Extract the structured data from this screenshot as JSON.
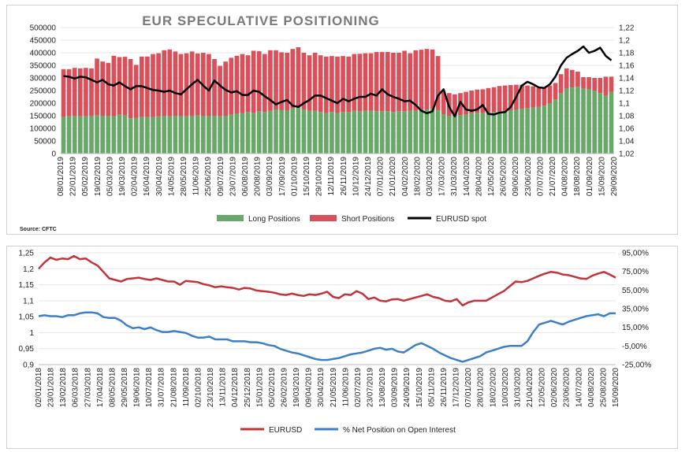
{
  "top": {
    "title": "EUR SPECULATIVE POSITIONING",
    "source": "Source: CFTC",
    "legend": {
      "long": "Long Positions",
      "short": "Short Positions",
      "spot": "EURUSD spot"
    },
    "colors": {
      "long": "#6aa86a",
      "short": "#d9505a",
      "spot": "#000000"
    }
  },
  "bottom": {
    "legend": {
      "eurusd": "EURUSD",
      "net": "% Net Position on Open Interest"
    },
    "colors": {
      "eurusd": "#c0343b",
      "net": "#3d7fc4"
    }
  },
  "chart_data": [
    {
      "type": "bar",
      "stacked": true,
      "title": "EUR SPECULATIVE POSITIONING",
      "x_tick_labels": [
        "08/01/2019",
        "22/01/2019",
        "05/02/2019",
        "19/02/2019",
        "05/03/2019",
        "19/03/2019",
        "02/04/2019",
        "16/04/2019",
        "30/04/2019",
        "14/05/2019",
        "28/05/2019",
        "11/06/2019",
        "25/06/2019",
        "09/07/2019",
        "23/07/2019",
        "06/08/2019",
        "20/08/2019",
        "03/09/2019",
        "17/09/2019",
        "01/10/2019",
        "15/10/2019",
        "29/10/2019",
        "12/11/2019",
        "26/11/2019",
        "10/12/2019",
        "24/12/2019",
        "07/01/2020",
        "21/01/2020",
        "04/02/2020",
        "18/02/2020",
        "03/03/2020",
        "17/03/2020",
        "31/03/2020",
        "14/04/2020",
        "28/04/2020",
        "12/05/2020",
        "26/05/2020",
        "09/06/2020",
        "23/06/2020",
        "07/07/2020",
        "21/07/2020",
        "04/08/2020",
        "18/08/2020",
        "01/09/2020",
        "15/09/2020",
        "29/09/2020"
      ],
      "ylim": [
        0,
        500000
      ],
      "y_ticks": [
        0,
        50000,
        100000,
        150000,
        200000,
        250000,
        300000,
        350000,
        400000,
        450000,
        500000
      ],
      "y2lim": [
        1.02,
        1.22
      ],
      "y2_tick_labels": [
        "1,02",
        "1,04",
        "1,06",
        "1,08",
        "1,1",
        "1,12",
        "1,14",
        "1,16",
        "1,18",
        "1,2",
        "1,22"
      ],
      "series": [
        {
          "name": "Long Positions",
          "axis": "left",
          "values": [
            145000,
            150000,
            150000,
            148000,
            148000,
            150000,
            152000,
            150000,
            150000,
            148000,
            155000,
            152000,
            140000,
            142000,
            145000,
            145000,
            145000,
            148000,
            150000,
            148000,
            150000,
            150000,
            148000,
            150000,
            152000,
            150000,
            150000,
            150000,
            148000,
            150000,
            155000,
            158000,
            160000,
            165000,
            160000,
            168000,
            165000,
            170000,
            175000,
            172000,
            170000,
            180000,
            185000,
            175000,
            170000,
            170000,
            165000,
            160000,
            165000,
            160000,
            165000,
            165000,
            170000,
            168000,
            170000,
            170000,
            168000,
            168000,
            168000,
            165000,
            168000,
            168000,
            170000,
            170000,
            172000,
            175000,
            178000,
            172000,
            155000,
            150000,
            150000,
            152000,
            155000,
            160000,
            162000,
            160000,
            165000,
            165000,
            168000,
            170000,
            172000,
            175000,
            178000,
            180000,
            182000,
            185000,
            190000,
            200000,
            215000,
            240000,
            258000,
            262000,
            265000,
            258000,
            255000,
            250000,
            240000,
            230000,
            245000
          ]
        },
        {
          "name": "Short Positions",
          "axis": "left",
          "values": [
            190000,
            185000,
            190000,
            190000,
            192000,
            188000,
            225000,
            215000,
            210000,
            240000,
            228000,
            232000,
            235000,
            210000,
            240000,
            240000,
            250000,
            250000,
            260000,
            265000,
            255000,
            245000,
            250000,
            255000,
            245000,
            250000,
            245000,
            225000,
            200000,
            215000,
            225000,
            230000,
            235000,
            225000,
            248000,
            238000,
            230000,
            240000,
            235000,
            230000,
            230000,
            235000,
            237000,
            225000,
            220000,
            230000,
            225000,
            225000,
            222000,
            225000,
            222000,
            220000,
            225000,
            228000,
            228000,
            228000,
            235000,
            235000,
            235000,
            235000,
            232000,
            240000,
            228000,
            240000,
            240000,
            240000,
            235000,
            215000,
            90000,
            90000,
            85000,
            88000,
            90000,
            90000,
            92000,
            95000,
            95000,
            98000,
            100000,
            100000,
            100000,
            98000,
            95000,
            90000,
            85000,
            75000,
            72000,
            70000,
            65000,
            75000,
            80000,
            70000,
            60000,
            45000,
            48000,
            50000,
            60000,
            75000,
            60000
          ]
        },
        {
          "name": "EURUSD spot",
          "axis": "right",
          "values": [
            1.143,
            1.142,
            1.139,
            1.142,
            1.141,
            1.137,
            1.133,
            1.137,
            1.13,
            1.128,
            1.133,
            1.127,
            1.122,
            1.127,
            1.127,
            1.124,
            1.121,
            1.12,
            1.118,
            1.12,
            1.116,
            1.114,
            1.122,
            1.13,
            1.137,
            1.128,
            1.12,
            1.136,
            1.128,
            1.121,
            1.117,
            1.119,
            1.113,
            1.113,
            1.12,
            1.118,
            1.111,
            1.105,
            1.098,
            1.102,
            1.105,
            1.096,
            1.094,
            1.1,
            1.105,
            1.112,
            1.112,
            1.108,
            1.104,
            1.1,
            1.107,
            1.103,
            1.107,
            1.11,
            1.11,
            1.115,
            1.112,
            1.122,
            1.114,
            1.11,
            1.107,
            1.103,
            1.104,
            1.097,
            1.088,
            1.084,
            1.087,
            1.112,
            1.122,
            1.094,
            1.079,
            1.102,
            1.09,
            1.088,
            1.09,
            1.097,
            1.083,
            1.082,
            1.085,
            1.086,
            1.094,
            1.11,
            1.128,
            1.134,
            1.13,
            1.125,
            1.124,
            1.13,
            1.142,
            1.16,
            1.172,
            1.178,
            1.183,
            1.19,
            1.18,
            1.183,
            1.188,
            1.175,
            1.168
          ]
        }
      ]
    },
    {
      "type": "line",
      "x_tick_labels": [
        "02/01/2018",
        "23/01/2018",
        "13/02/2018",
        "06/03/2018",
        "27/03/2018",
        "17/04/2018",
        "08/05/2018",
        "29/05/2018",
        "19/06/2018",
        "10/07/2018",
        "31/07/2018",
        "21/08/2018",
        "11/09/2018",
        "02/10/2018",
        "23/10/2018",
        "13/11/2018",
        "04/12/2018",
        "25/12/2018",
        "15/01/2019",
        "05/02/2019",
        "26/02/2019",
        "19/03/2019",
        "09/04/2019",
        "30/04/2019",
        "21/05/2019",
        "11/06/2019",
        "02/07/2019",
        "23/07/2019",
        "13/08/2019",
        "03/09/2019",
        "24/09/2019",
        "15/10/2019",
        "05/11/2019",
        "26/11/2019",
        "17/12/2019",
        "07/01/2020",
        "28/01/2020",
        "18/02/2020",
        "10/03/2020",
        "31/03/2020",
        "21/04/2020",
        "12/05/2020",
        "02/06/2020",
        "23/06/2020",
        "14/07/2020",
        "04/08/2020",
        "25/08/2020",
        "15/09/2020"
      ],
      "ylim": [
        0.9,
        1.25
      ],
      "y_tick_labels": [
        "0,9",
        "0,95",
        "1",
        "1,05",
        "1,1",
        "1,15",
        "1,2",
        "1,25"
      ],
      "y2lim": [
        -25,
        95
      ],
      "y2_tick_labels": [
        "-25,00%",
        "-5,00%",
        "15,00%",
        "35,00%",
        "55,00%",
        "75,00%",
        "95,00%"
      ],
      "series": [
        {
          "name": "EURUSD",
          "axis": "left",
          "values": [
            1.2,
            1.22,
            1.235,
            1.228,
            1.232,
            1.23,
            1.24,
            1.23,
            1.232,
            1.22,
            1.21,
            1.19,
            1.17,
            1.165,
            1.16,
            1.168,
            1.17,
            1.172,
            1.168,
            1.165,
            1.17,
            1.165,
            1.16,
            1.16,
            1.15,
            1.162,
            1.16,
            1.158,
            1.152,
            1.148,
            1.142,
            1.145,
            1.142,
            1.14,
            1.135,
            1.14,
            1.138,
            1.132,
            1.13,
            1.128,
            1.125,
            1.12,
            1.118,
            1.122,
            1.118,
            1.115,
            1.12,
            1.118,
            1.122,
            1.128,
            1.112,
            1.108,
            1.12,
            1.118,
            1.13,
            1.122,
            1.105,
            1.11,
            1.1,
            1.098,
            1.104,
            1.105,
            1.1,
            1.105,
            1.11,
            1.115,
            1.12,
            1.112,
            1.108,
            1.1,
            1.098,
            1.105,
            1.085,
            1.095,
            1.1,
            1.1,
            1.1,
            1.11,
            1.12,
            1.13,
            1.145,
            1.16,
            1.158,
            1.162,
            1.17,
            1.178,
            1.185,
            1.19,
            1.188,
            1.182,
            1.18,
            1.175,
            1.17,
            1.168,
            1.178,
            1.185,
            1.19,
            1.182,
            1.172
          ]
        },
        {
          "name": "% Net Position on Open Interest",
          "axis": "right",
          "values": [
            27,
            28,
            27,
            27,
            26,
            28,
            28,
            30,
            31,
            31,
            30,
            26,
            25,
            25,
            22,
            17,
            14,
            15,
            13,
            15,
            12,
            10,
            10,
            11,
            10,
            9,
            6,
            4,
            4,
            5,
            2,
            2,
            2,
            0,
            0,
            0,
            -1,
            -1,
            -2,
            -4,
            -5,
            -8,
            -10,
            -12,
            -13,
            -15,
            -17,
            -19,
            -20,
            -20,
            -19,
            -18,
            -16,
            -14,
            -13,
            -12,
            -10,
            -8,
            -7,
            -9,
            -8,
            -11,
            -12,
            -8,
            -4,
            -2,
            -5,
            -8,
            -12,
            -15,
            -18,
            -20,
            -22,
            -20,
            -18,
            -16,
            -12,
            -10,
            -8,
            -6,
            -5,
            -5,
            -5,
            0,
            10,
            18,
            20,
            22,
            20,
            18,
            21,
            23,
            25,
            27,
            28,
            29,
            27,
            30,
            30
          ]
        }
      ]
    }
  ]
}
